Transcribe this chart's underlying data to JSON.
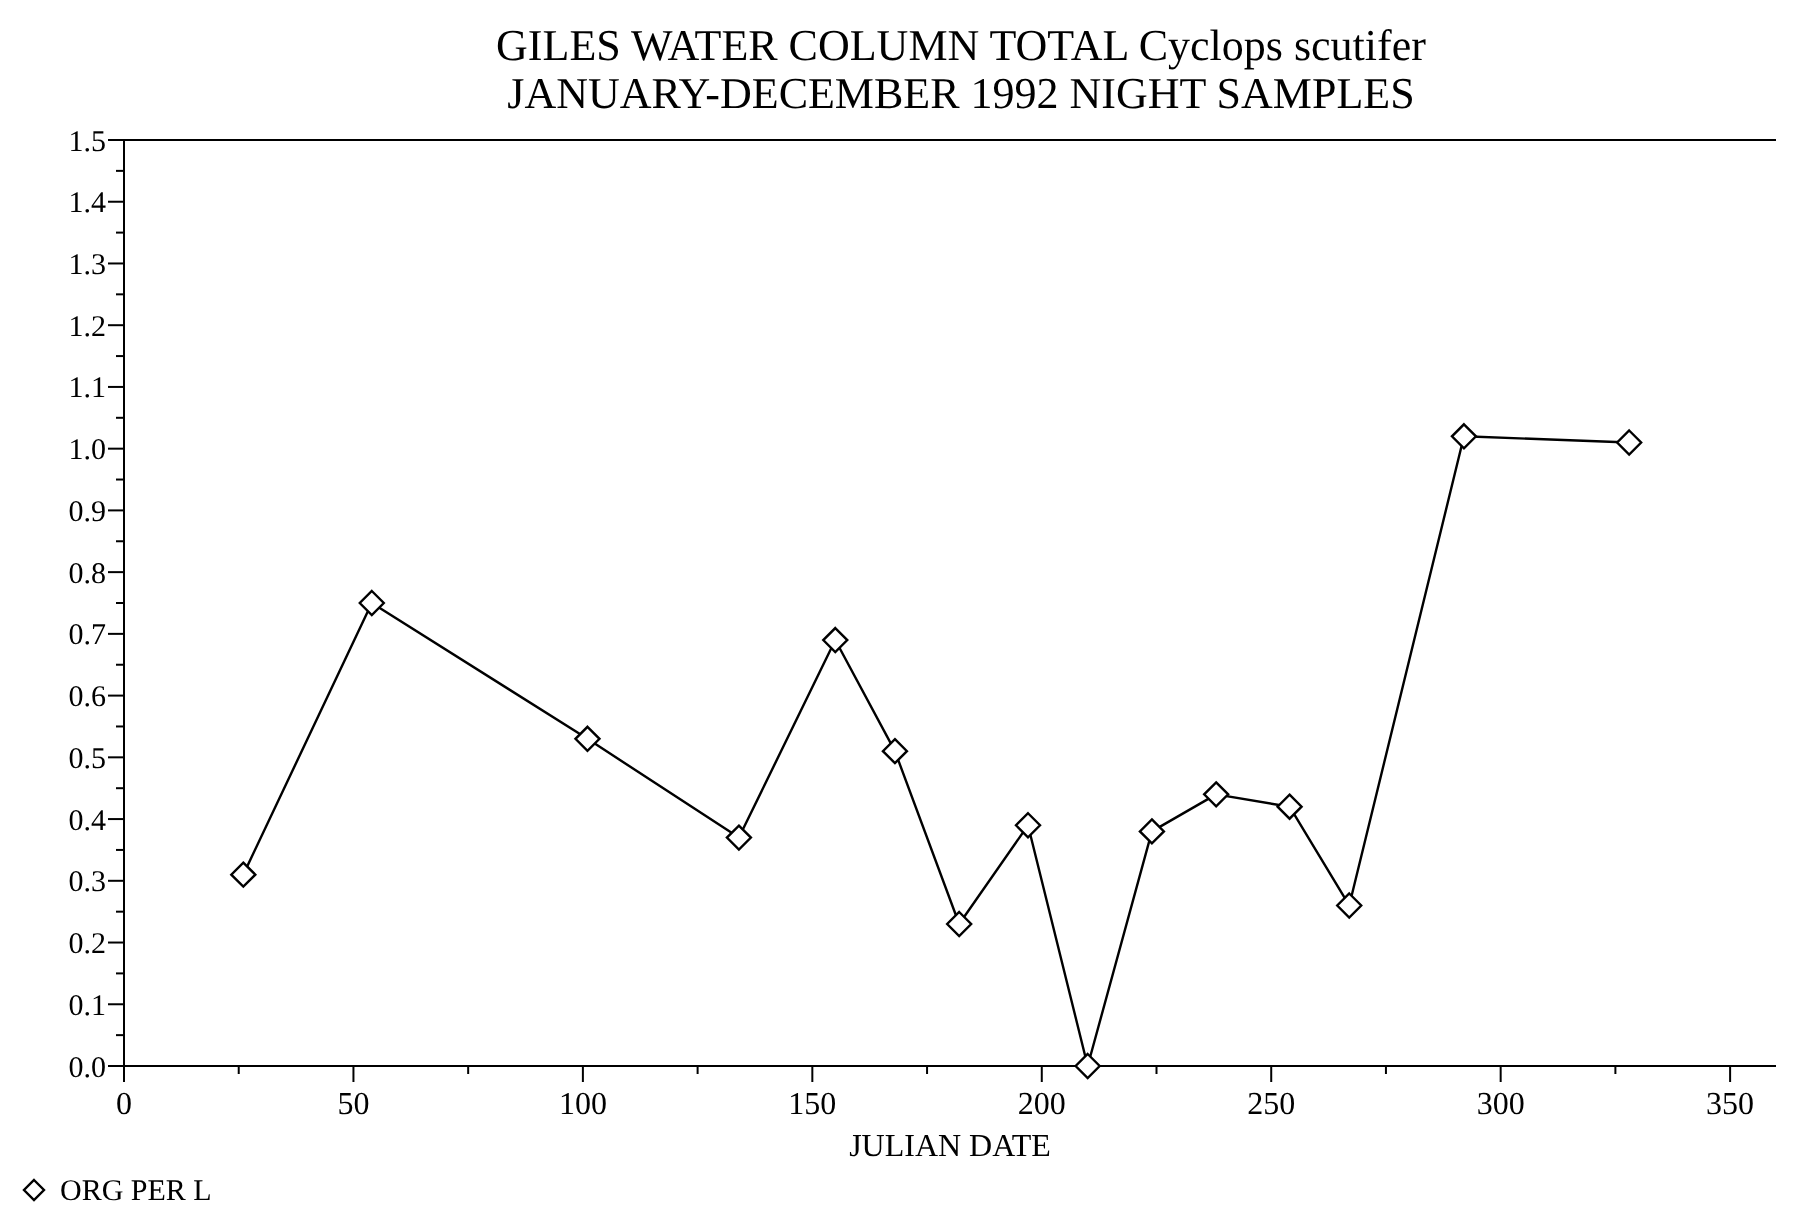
{
  "chart_data": {
    "type": "line",
    "title": "GILES WATER COLUMN TOTAL Cyclops scutifer",
    "subtitle": "JANUARY-DECEMBER 1992 NIGHT SAMPLES",
    "xlabel": "JULIAN DATE",
    "x": [
      26,
      54,
      101,
      134,
      155,
      168,
      182,
      197,
      210,
      224,
      238,
      254,
      267,
      292,
      328
    ],
    "series": [
      {
        "name": "ORG PER L",
        "color": "#000000",
        "values": [
          0.31,
          0.75,
          0.53,
          0.37,
          0.69,
          0.51,
          0.23,
          0.39,
          0.0,
          0.38,
          0.44,
          0.42,
          0.26,
          1.02,
          1.01
        ]
      }
    ],
    "xlim": [
      0,
      360
    ],
    "xticks": [
      0,
      {
        "value": 25,
        "label": null
      },
      50,
      {
        "value": 75,
        "label": null
      },
      100,
      {
        "value": 125,
        "label": null
      },
      150,
      {
        "value": 175,
        "label": null
      },
      200,
      {
        "value": 225,
        "label": null
      },
      250,
      {
        "value": 275,
        "label": null
      },
      300,
      {
        "value": 325,
        "label": null
      },
      350
    ],
    "ylim": [
      0,
      1.5
    ],
    "yticks": [
      {
        "value": 0,
        "label": "0.0"
      },
      {
        "value": 0.05,
        "label": null
      },
      {
        "value": 0.1,
        "label": "0.1"
      },
      {
        "value": 0.15,
        "label": null
      },
      {
        "value": 0.2,
        "label": "0.2"
      },
      {
        "value": 0.25,
        "label": null
      },
      {
        "value": 0.3,
        "label": "0.3"
      },
      {
        "value": 0.35,
        "label": null
      },
      {
        "value": 0.4,
        "label": "0.4"
      },
      {
        "value": 0.45,
        "label": null
      },
      {
        "value": 0.5,
        "label": "0.5"
      },
      {
        "value": 0.55,
        "label": null
      },
      {
        "value": 0.6,
        "label": "0.6"
      },
      {
        "value": 0.65,
        "label": null
      },
      {
        "value": 0.7,
        "label": "0.7"
      },
      {
        "value": 0.75,
        "label": null
      },
      {
        "value": 0.8,
        "label": "0.8"
      },
      {
        "value": 0.85,
        "label": null
      },
      {
        "value": 0.9,
        "label": "0.9"
      },
      {
        "value": 0.95,
        "label": null
      },
      {
        "value": 1.0,
        "label": "1.0"
      },
      {
        "value": 1.05,
        "label": null
      },
      {
        "value": 1.1,
        "label": "1.1"
      },
      {
        "value": 1.15,
        "label": null
      },
      {
        "value": 1.2,
        "label": "1.2"
      },
      {
        "value": 1.25,
        "label": null
      },
      {
        "value": 1.3,
        "label": "1.3"
      },
      {
        "value": 1.35,
        "label": null
      },
      {
        "value": 1.4,
        "label": "1.4"
      },
      {
        "value": 1.45,
        "label": null
      },
      {
        "value": 1.5,
        "label": "1.5"
      }
    ],
    "legend": "bottom left",
    "marker": "diamond",
    "line_style": "solid"
  }
}
